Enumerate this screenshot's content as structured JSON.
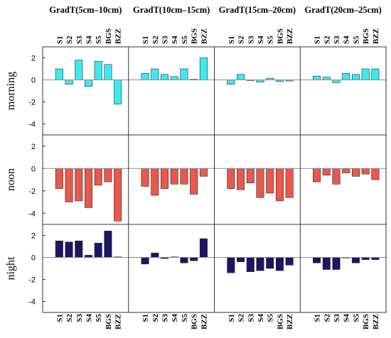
{
  "chart_data": {
    "type": "bar",
    "title": "",
    "categories": [
      "S1",
      "S2",
      "S3",
      "S4",
      "S5",
      "BGS",
      "BZZ"
    ],
    "column_titles": [
      "GradT(5cm–10cm)",
      "GradT(10cm–15cm)",
      "GradT(15cm–20cm)",
      "GradT(20cm–25cm)"
    ],
    "row_labels": [
      "morning",
      "noon",
      "night"
    ],
    "ylim": [
      -5,
      3
    ],
    "yticks": [
      -4,
      -2,
      0,
      2
    ],
    "ytick_labels": [
      "-4",
      "-2",
      "0",
      "2"
    ],
    "colors": {
      "morning": "#3fe8ef",
      "noon": "#e8584c",
      "night": "#1d1463",
      "axis": "#333333",
      "zero_line": "#8a8a8a"
    },
    "panels": [
      {
        "row": "morning",
        "column": "GradT(5cm–10cm)",
        "values": [
          1.0,
          -0.4,
          1.8,
          -0.6,
          1.7,
          1.4,
          -2.2
        ]
      },
      {
        "row": "morning",
        "column": "GradT(10cm–15cm)",
        "values": [
          0.6,
          1.0,
          0.5,
          0.3,
          1.0,
          0.05,
          2.0
        ]
      },
      {
        "row": "morning",
        "column": "GradT(15cm–20cm)",
        "values": [
          -0.4,
          0.5,
          -0.05,
          -0.2,
          0.15,
          -0.15,
          -0.1
        ]
      },
      {
        "row": "morning",
        "column": "GradT(20cm–25cm)",
        "values": [
          0.35,
          0.25,
          -0.25,
          0.6,
          0.5,
          1.0,
          1.0
        ]
      },
      {
        "row": "noon",
        "column": "GradT(5cm–10cm)",
        "values": [
          -1.8,
          -3.0,
          -2.9,
          -3.5,
          -1.5,
          -1.2,
          -4.7
        ]
      },
      {
        "row": "noon",
        "column": "GradT(10cm–15cm)",
        "values": [
          -1.6,
          -2.4,
          -1.8,
          -1.4,
          -1.4,
          -2.3,
          -0.7
        ]
      },
      {
        "row": "noon",
        "column": "GradT(15cm–20cm)",
        "values": [
          -1.8,
          -1.9,
          -1.3,
          -2.6,
          -2.2,
          -2.9,
          -2.6
        ]
      },
      {
        "row": "noon",
        "column": "GradT(20cm–25cm)",
        "values": [
          -1.2,
          -0.6,
          -1.4,
          -0.4,
          -0.7,
          -0.5,
          -1.0
        ]
      },
      {
        "row": "night",
        "column": "GradT(5cm–10cm)",
        "values": [
          1.5,
          1.4,
          1.5,
          0.2,
          1.3,
          2.4,
          0.05
        ]
      },
      {
        "row": "night",
        "column": "GradT(10cm–15cm)",
        "values": [
          -0.6,
          0.4,
          -0.1,
          0.05,
          -0.5,
          -0.3,
          1.7
        ]
      },
      {
        "row": "night",
        "column": "GradT(15cm–20cm)",
        "values": [
          -1.4,
          -0.4,
          -1.3,
          -1.2,
          -1.0,
          -1.2,
          -0.7
        ]
      },
      {
        "row": "night",
        "column": "GradT(20cm–25cm)",
        "values": [
          -0.5,
          -1.1,
          -1.1,
          0.0,
          -0.5,
          -0.2,
          -0.2
        ]
      }
    ]
  }
}
